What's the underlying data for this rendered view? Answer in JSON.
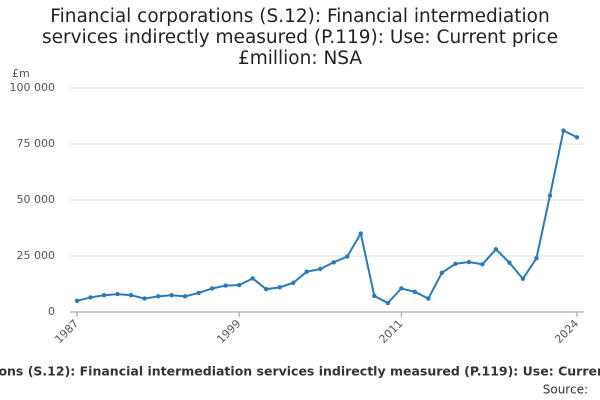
{
  "chart_data": {
    "type": "line",
    "title": "Financial corporations (S.12): Financial intermediation services indirectly measured (P.119): Use: Current price £million: NSA",
    "y_axis_label": "£m",
    "footer": "ions (S.12): Financial intermediation services indirectly measured (P.119): Use: Curren",
    "source": "Source:",
    "x": [
      1987,
      1988,
      1989,
      1990,
      1991,
      1992,
      1993,
      1994,
      1995,
      1996,
      1997,
      1998,
      1999,
      2000,
      2001,
      2002,
      2003,
      2004,
      2005,
      2006,
      2007,
      2008,
      2009,
      2010,
      2011,
      2012,
      2013,
      2014,
      2015,
      2016,
      2017,
      2018,
      2019,
      2020,
      2021,
      2022,
      2023,
      2024
    ],
    "series": [
      {
        "name": "Financial intermediation services indirectly measured",
        "color": "#2a7ab8",
        "values": [
          5000,
          6500,
          7500,
          8000,
          7500,
          6000,
          7000,
          7500,
          7000,
          8500,
          10500,
          11800,
          12000,
          15000,
          10200,
          11000,
          13000,
          18000,
          19200,
          22200,
          24800,
          35000,
          7200,
          4000,
          10500,
          9000,
          6000,
          17500,
          21500,
          22300,
          21300,
          28000,
          22000,
          14800,
          24000,
          52000,
          81000,
          78000
        ]
      }
    ],
    "xlim": [
      1987,
      2024
    ],
    "xticks": [
      1987,
      1999,
      2011,
      2024
    ],
    "ylim": [
      0,
      100000
    ],
    "yticks": [
      0,
      {
        "value": 25000,
        "label": "25 000"
      },
      {
        "value": 50000,
        "label": "50 000"
      },
      {
        "value": 75000,
        "label": "75 000"
      },
      {
        "value": 100000,
        "label": "100 000"
      }
    ],
    "grid": true
  }
}
